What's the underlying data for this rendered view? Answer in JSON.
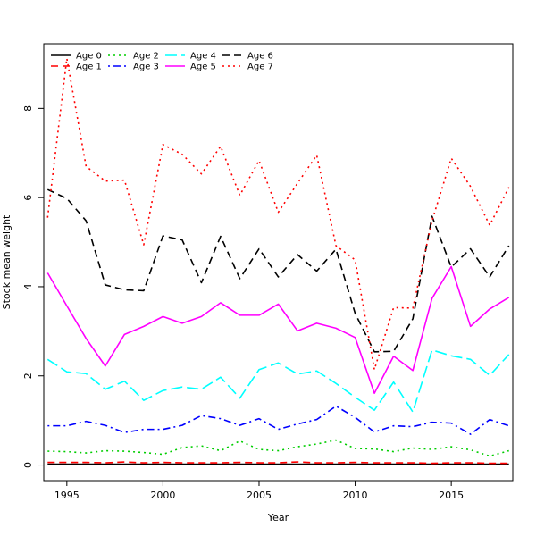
{
  "chart_data": {
    "type": "line",
    "title": "",
    "xlabel": "Year",
    "ylabel": "Stock mean weight",
    "xlim": [
      1993.8,
      2018.2
    ],
    "ylim": [
      -0.35,
      9.45
    ],
    "x_ticks": [
      1995,
      2000,
      2005,
      2010,
      2015
    ],
    "y_ticks": [
      0,
      2,
      4,
      6,
      8
    ],
    "grid": false,
    "legend_position": "top-left",
    "x": [
      1994,
      1995,
      1996,
      1997,
      1998,
      1999,
      2000,
      2001,
      2002,
      2003,
      2004,
      2005,
      2006,
      2007,
      2008,
      2009,
      2010,
      2011,
      2012,
      2013,
      2014,
      2015,
      2016,
      2017,
      2018
    ],
    "series": [
      {
        "name": "Age 0",
        "color": "#000000",
        "dash": "solid",
        "values": [
          0.02,
          0.02,
          0.02,
          0.02,
          0.02,
          0.02,
          0.02,
          0.02,
          0.02,
          0.02,
          0.02,
          0.02,
          0.02,
          0.02,
          0.02,
          0.02,
          0.02,
          0.02,
          0.02,
          0.02,
          0.02,
          0.02,
          0.02,
          0.02,
          0.02
        ]
      },
      {
        "name": "Age 1",
        "color": "#ff0000",
        "dash": "dashed",
        "values": [
          0.06,
          0.06,
          0.06,
          0.05,
          0.07,
          0.05,
          0.06,
          0.05,
          0.05,
          0.05,
          0.06,
          0.05,
          0.05,
          0.07,
          0.05,
          0.05,
          0.06,
          0.05,
          0.05,
          0.05,
          0.04,
          0.05,
          0.05,
          0.04,
          0.04
        ]
      },
      {
        "name": "Age 2",
        "color": "#00cd00",
        "dash": "dotted",
        "values": [
          0.31,
          0.3,
          0.27,
          0.32,
          0.31,
          0.28,
          0.24,
          0.39,
          0.43,
          0.32,
          0.54,
          0.35,
          0.32,
          0.41,
          0.47,
          0.56,
          0.37,
          0.36,
          0.3,
          0.38,
          0.35,
          0.41,
          0.34,
          0.2,
          0.32
        ]
      },
      {
        "name": "Age 3",
        "color": "#0000ff",
        "dash": "dotdash",
        "values": [
          0.88,
          0.88,
          0.98,
          0.89,
          0.73,
          0.8,
          0.8,
          0.89,
          1.11,
          1.04,
          0.89,
          1.04,
          0.8,
          0.92,
          1.02,
          1.32,
          1.07,
          0.74,
          0.88,
          0.86,
          0.96,
          0.94,
          0.69,
          1.02,
          0.88
        ]
      },
      {
        "name": "Age 4",
        "color": "#00ffff",
        "dash": "longdash",
        "values": [
          2.37,
          2.09,
          2.05,
          1.7,
          1.88,
          1.45,
          1.67,
          1.75,
          1.7,
          1.97,
          1.5,
          2.14,
          2.29,
          2.04,
          2.11,
          1.83,
          1.52,
          1.23,
          1.86,
          1.19,
          2.58,
          2.45,
          2.37,
          2.01,
          2.48
        ]
      },
      {
        "name": "Age 5",
        "color": "#ff00ff",
        "dash": "solid",
        "values": [
          4.31,
          3.57,
          2.84,
          2.22,
          2.93,
          3.11,
          3.33,
          3.18,
          3.33,
          3.64,
          3.36,
          3.36,
          3.61,
          3.01,
          3.18,
          3.07,
          2.86,
          1.61,
          2.44,
          2.12,
          3.74,
          4.45,
          3.11,
          3.5,
          3.76
        ]
      },
      {
        "name": "Age 6",
        "color": "#000000",
        "dash": "dashed",
        "values": [
          6.18,
          5.98,
          5.48,
          4.04,
          3.93,
          3.91,
          5.14,
          5.05,
          4.09,
          5.13,
          4.18,
          4.85,
          4.22,
          4.72,
          4.35,
          4.84,
          3.4,
          2.54,
          2.55,
          3.28,
          5.58,
          4.44,
          4.85,
          4.22,
          4.92
        ]
      },
      {
        "name": "Age 7",
        "color": "#ff0000",
        "dash": "dotted",
        "values": [
          5.55,
          9.12,
          6.7,
          6.37,
          6.39,
          4.94,
          7.19,
          6.97,
          6.53,
          7.15,
          6.05,
          6.83,
          5.67,
          6.32,
          6.95,
          4.92,
          4.6,
          2.14,
          3.53,
          3.52,
          5.48,
          6.88,
          6.25,
          5.38,
          6.23
        ]
      }
    ]
  }
}
